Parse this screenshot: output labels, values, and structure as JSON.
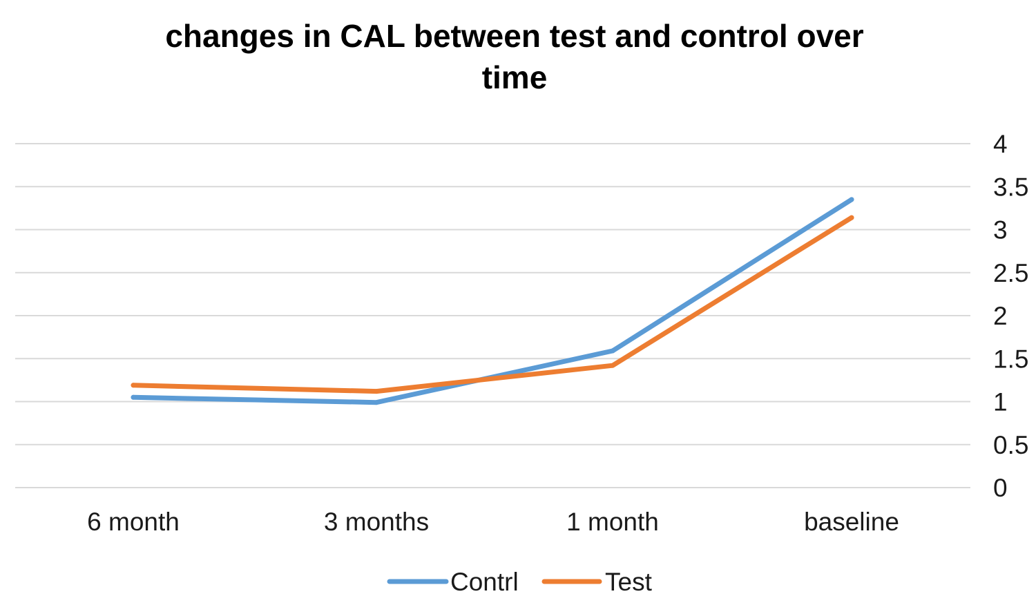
{
  "chart_data": {
    "type": "line",
    "title_lines": [
      "changes in CAL between test and control over",
      "time"
    ],
    "categories": [
      "6 month",
      "3 months",
      "1 month",
      "baseline"
    ],
    "series": [
      {
        "name": "Contrl",
        "color": "#5b9bd5",
        "values": [
          1.05,
          0.99,
          1.59,
          3.35
        ]
      },
      {
        "name": "Test",
        "color": "#ed7d31",
        "values": [
          1.19,
          1.12,
          1.42,
          3.14
        ]
      }
    ],
    "y_axis": {
      "position": "right",
      "min": 0,
      "max": 4,
      "ticks": [
        "0",
        "0.5",
        "1",
        "1.5",
        "2",
        "2.5",
        "3",
        "3.5",
        "4"
      ]
    },
    "grid": true,
    "legend": "bottom"
  }
}
